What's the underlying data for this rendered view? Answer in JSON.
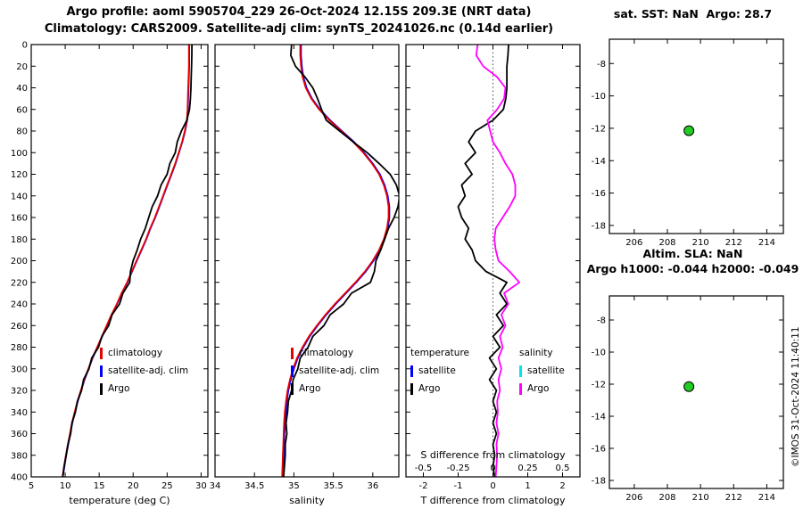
{
  "header": {
    "line1": "Argo profile: aoml 5905704_229 26-Oct-2024 12.15S 209.3E (NRT data)",
    "line2": "Climatology: CARS2009. Satellite-adj clim: synTS_20241026.nc (0.14d earlier)"
  },
  "watermark": "©IMOS 31-Oct-2024 11:40:11",
  "colors": {
    "climatology": "#e60000",
    "satellite_adj": "#0000ff",
    "argo": "#000000",
    "salinity_satellite": "#00e5ee",
    "salinity_argo": "#ff00ff",
    "marker_fill": "#22cc22",
    "marker_edge": "#000000"
  },
  "chart_data": [
    {
      "id": "temperature-profile",
      "type": "line",
      "xlabel": "temperature (deg C)",
      "xlim": [
        5,
        31
      ],
      "xticks": [
        5,
        10,
        15,
        20,
        25,
        30
      ],
      "ylim": [
        0,
        400
      ],
      "yticks": [
        0,
        20,
        40,
        60,
        80,
        100,
        120,
        140,
        160,
        180,
        200,
        220,
        240,
        260,
        280,
        300,
        320,
        340,
        360,
        380,
        400
      ],
      "ytick_labels": true,
      "grid": false,
      "y": [
        0,
        10,
        20,
        30,
        40,
        50,
        60,
        70,
        80,
        90,
        100,
        110,
        120,
        130,
        140,
        150,
        160,
        170,
        180,
        190,
        200,
        210,
        220,
        230,
        240,
        250,
        260,
        270,
        280,
        290,
        300,
        310,
        320,
        330,
        340,
        350,
        360,
        370,
        380,
        390,
        400
      ],
      "series": [
        {
          "name": "satellite-adj clim",
          "color": "#0000ff",
          "values": [
            28.25,
            28.25,
            28.25,
            28.2,
            28.15,
            28.1,
            28.05,
            27.95,
            27.65,
            27.25,
            26.75,
            26.25,
            25.65,
            25.05,
            24.45,
            23.85,
            23.25,
            22.55,
            21.95,
            21.25,
            20.55,
            19.85,
            19.15,
            18.35,
            17.65,
            16.85,
            16.15,
            15.45,
            14.75,
            14.05,
            13.45,
            12.85,
            12.35,
            11.85,
            11.45,
            11.05,
            10.75,
            10.45,
            10.15,
            9.9,
            9.65
          ]
        },
        {
          "name": "climatology",
          "color": "#e60000",
          "values": [
            28.2,
            28.2,
            28.2,
            28.15,
            28.1,
            28.05,
            28.0,
            27.9,
            27.6,
            27.2,
            26.7,
            26.2,
            25.6,
            25.0,
            24.4,
            23.8,
            23.2,
            22.5,
            21.9,
            21.2,
            20.5,
            19.8,
            19.1,
            18.3,
            17.6,
            16.8,
            16.1,
            15.4,
            14.7,
            14.0,
            13.4,
            12.8,
            12.3,
            11.8,
            11.4,
            11.0,
            10.7,
            10.4,
            10.1,
            9.85,
            9.6
          ]
        },
        {
          "name": "Argo",
          "color": "#000000",
          "values": [
            28.65,
            28.63,
            28.6,
            28.55,
            28.5,
            28.42,
            28.3,
            27.9,
            27.1,
            26.5,
            26.2,
            25.4,
            25.0,
            24.1,
            23.6,
            22.8,
            22.3,
            21.8,
            21.1,
            20.6,
            20.0,
            19.6,
            19.5,
            18.5,
            18.0,
            16.9,
            16.4,
            15.4,
            14.9,
            13.9,
            13.5,
            12.7,
            12.4,
            11.8,
            11.5,
            11.0,
            10.8,
            10.4,
            10.15,
            9.85,
            9.65
          ]
        }
      ],
      "legend": {
        "items": [
          {
            "label": "climatology",
            "color": "#e60000"
          },
          {
            "label": "satellite-adj. clim",
            "color": "#0000ff"
          },
          {
            "label": "Argo",
            "color": "#000000"
          }
        ]
      }
    },
    {
      "id": "salinity-profile",
      "type": "line",
      "xlabel": "salinity",
      "xlim": [
        34,
        36.33
      ],
      "xticks": [
        34,
        34.5,
        35,
        35.5,
        36
      ],
      "ylim": [
        0,
        400
      ],
      "yticks": [
        0,
        20,
        40,
        60,
        80,
        100,
        120,
        140,
        160,
        180,
        200,
        220,
        240,
        260,
        280,
        300,
        320,
        340,
        360,
        380,
        400
      ],
      "ytick_labels": false,
      "grid": false,
      "y": [
        0,
        10,
        20,
        30,
        40,
        50,
        60,
        70,
        80,
        90,
        100,
        110,
        120,
        130,
        140,
        150,
        160,
        170,
        180,
        190,
        200,
        210,
        220,
        230,
        240,
        250,
        260,
        270,
        280,
        290,
        300,
        310,
        320,
        330,
        340,
        350,
        360,
        370,
        380,
        390,
        400
      ],
      "series": [
        {
          "name": "satellite-adj clim",
          "color": "#0000ff",
          "values": [
            35.09,
            35.09,
            35.1,
            35.12,
            35.16,
            35.23,
            35.33,
            35.46,
            35.61,
            35.76,
            35.89,
            36.0,
            36.09,
            36.15,
            36.19,
            36.21,
            36.21,
            36.19,
            36.15,
            36.09,
            36.01,
            35.91,
            35.79,
            35.66,
            35.53,
            35.41,
            35.3,
            35.2,
            35.12,
            35.05,
            35.0,
            34.96,
            34.93,
            34.91,
            34.9,
            34.89,
            34.88,
            34.875,
            34.87,
            34.865,
            34.86
          ]
        },
        {
          "name": "climatology",
          "color": "#e60000",
          "values": [
            35.08,
            35.08,
            35.09,
            35.11,
            35.15,
            35.22,
            35.32,
            35.45,
            35.6,
            35.75,
            35.88,
            35.99,
            36.08,
            36.14,
            36.18,
            36.2,
            36.2,
            36.18,
            36.14,
            36.08,
            36.0,
            35.9,
            35.78,
            35.65,
            35.52,
            35.4,
            35.29,
            35.19,
            35.11,
            35.04,
            34.99,
            34.95,
            34.92,
            34.9,
            34.885,
            34.875,
            34.87,
            34.865,
            34.86,
            34.855,
            34.85
          ]
        },
        {
          "name": "Argo",
          "color": "#000000",
          "values": [
            34.97,
            34.96,
            35.02,
            35.14,
            35.24,
            35.3,
            35.35,
            35.41,
            35.58,
            35.75,
            35.93,
            36.08,
            36.22,
            36.3,
            36.34,
            36.32,
            36.27,
            36.2,
            36.15,
            36.1,
            36.04,
            36.02,
            35.97,
            35.73,
            35.63,
            35.46,
            35.38,
            35.24,
            35.18,
            35.08,
            35.05,
            34.99,
            34.97,
            34.93,
            34.92,
            34.9,
            34.91,
            34.89,
            34.89,
            34.88,
            34.87
          ]
        }
      ],
      "legend": {
        "items": [
          {
            "label": "climatology",
            "color": "#e60000"
          },
          {
            "label": "satellite-adj. clim",
            "color": "#0000ff"
          },
          {
            "label": "Argo",
            "color": "#000000"
          }
        ]
      }
    },
    {
      "id": "difference-profile",
      "type": "line",
      "xlabel": "T difference from climatology",
      "xlim": [
        -2.5,
        2.5
      ],
      "xticks": [
        -2,
        -1,
        0,
        1,
        2
      ],
      "ylim": [
        0,
        400
      ],
      "yticks": [
        0,
        20,
        40,
        60,
        80,
        100,
        120,
        140,
        160,
        180,
        200,
        220,
        240,
        260,
        280,
        300,
        320,
        340,
        360,
        380,
        400
      ],
      "ytick_labels": false,
      "zero_line": true,
      "grid": false,
      "secondary_axis": {
        "label": "S difference from climatology",
        "ticks": [
          -0.5,
          -0.25,
          0,
          0.25,
          0.5
        ],
        "scale": 4
      },
      "y": [
        0,
        10,
        20,
        30,
        40,
        50,
        60,
        70,
        80,
        90,
        100,
        110,
        120,
        130,
        140,
        150,
        160,
        170,
        180,
        190,
        200,
        210,
        220,
        230,
        240,
        250,
        260,
        270,
        280,
        290,
        300,
        310,
        320,
        330,
        340,
        350,
        360,
        370,
        380,
        390,
        400
      ],
      "series": [
        {
          "name": "temperature satellite",
          "color": "#0000ff",
          "values": []
        },
        {
          "name": "temperature Argo",
          "color": "#000000",
          "values": [
            0.45,
            0.43,
            0.4,
            0.4,
            0.4,
            0.37,
            0.3,
            0.0,
            -0.5,
            -0.7,
            -0.5,
            -0.8,
            -0.6,
            -0.9,
            -0.8,
            -1.0,
            -0.9,
            -0.7,
            -0.8,
            -0.6,
            -0.5,
            -0.2,
            0.4,
            0.2,
            0.4,
            0.1,
            0.3,
            0.0,
            0.2,
            -0.1,
            0.1,
            -0.1,
            0.1,
            0.0,
            0.1,
            0.0,
            0.1,
            0.0,
            0.05,
            0.0,
            0.05
          ]
        },
        {
          "name": "salinity satellite",
          "color": "#00e5ee",
          "scale": 4,
          "values": []
        },
        {
          "name": "salinity Argo",
          "color": "#ff00ff",
          "scale": 4,
          "values": [
            -0.11,
            -0.12,
            -0.07,
            0.03,
            0.09,
            0.08,
            0.03,
            -0.04,
            -0.02,
            0.0,
            0.05,
            0.09,
            0.14,
            0.16,
            0.16,
            0.12,
            0.07,
            0.02,
            0.01,
            0.02,
            0.04,
            0.12,
            0.19,
            0.08,
            0.11,
            0.06,
            0.09,
            0.05,
            0.07,
            0.04,
            0.06,
            0.04,
            0.05,
            0.03,
            0.035,
            0.025,
            0.04,
            0.025,
            0.03,
            0.025,
            0.02
          ]
        }
      ],
      "legend": {
        "columns": [
          {
            "header": "temperature",
            "items": [
              {
                "label": "satellite",
                "color": "#0000ff"
              },
              {
                "label": "Argo",
                "color": "#000000"
              }
            ]
          },
          {
            "header": "salinity",
            "items": [
              {
                "label": "satellite",
                "color": "#00e5ee"
              },
              {
                "label": "Argo",
                "color": "#ff00ff"
              }
            ]
          }
        ]
      }
    },
    {
      "id": "map-sst",
      "type": "scatter",
      "title": "sat. SST: NaN  Argo: 28.7",
      "xlim": [
        204.5,
        215
      ],
      "xticks": [
        206,
        208,
        210,
        212,
        214
      ],
      "ylim": [
        -6.5,
        -18.5
      ],
      "yticks": [
        -8,
        -10,
        -12,
        -14,
        -16,
        -18
      ],
      "ytick_labels": true,
      "grid": false,
      "marker_color": "#22cc22",
      "points": [
        {
          "x": 209.3,
          "y": -12.15
        }
      ]
    },
    {
      "id": "map-sla",
      "type": "scatter",
      "title_line1": "Altim. SLA: NaN",
      "title_line2": "Argo h1000: -0.044 h2000: -0.049",
      "xlim": [
        204.5,
        215
      ],
      "xticks": [
        206,
        208,
        210,
        212,
        214
      ],
      "ylim": [
        -6.5,
        -18.5
      ],
      "yticks": [
        -8,
        -10,
        -12,
        -14,
        -16,
        -18
      ],
      "ytick_labels": true,
      "grid": false,
      "marker_color": "#22cc22",
      "points": [
        {
          "x": 209.3,
          "y": -12.15
        }
      ]
    }
  ]
}
